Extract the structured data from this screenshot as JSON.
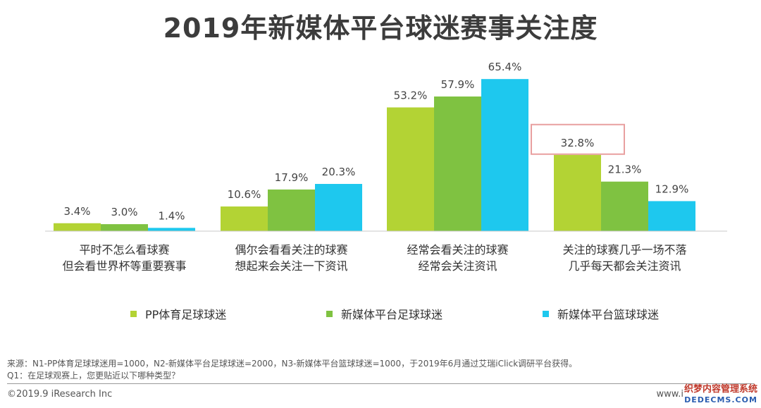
{
  "title": "2019年新媒体平台球迷赛事关注度",
  "chart_data": {
    "type": "bar",
    "title": "2019年新媒体平台球迷赛事关注度",
    "categories": [
      [
        "平时不怎么看球赛",
        "但会看世界杯等重要赛事"
      ],
      [
        "偶尔会看看关注的球赛",
        "想起来会关注一下资讯"
      ],
      [
        "经常会看关注的球赛",
        "经常会关注资讯"
      ],
      [
        "关注的球赛几乎一场不落",
        "几乎每天都会关注资讯"
      ]
    ],
    "series": [
      {
        "name": "PP体育足球球迷",
        "color": "#b3d334",
        "values": [
          3.4,
          10.6,
          53.2,
          32.8
        ]
      },
      {
        "name": "新媒体平台足球球迷",
        "color": "#7fc241",
        "values": [
          3.0,
          17.9,
          57.9,
          21.3
        ]
      },
      {
        "name": "新媒体平台篮球球迷",
        "color": "#1ec8ee",
        "values": [
          1.4,
          20.3,
          65.4,
          12.9
        ]
      }
    ],
    "value_labels": [
      [
        "3.4%",
        "10.6%",
        "53.2%",
        "32.8%"
      ],
      [
        "3.0%",
        "17.9%",
        "57.9%",
        "21.3%"
      ],
      [
        "1.4%",
        "20.3%",
        "65.4%",
        "12.9%"
      ]
    ],
    "highlight": {
      "series": 0,
      "category": 3,
      "color": "#e8a0a0"
    },
    "ylim": [
      0,
      70
    ],
    "grid": false,
    "legend": "bottom",
    "xlabel": "",
    "ylabel": ""
  },
  "notes": {
    "source": "来源：N1-PP体育足球球迷用=1000，N2-新媒体平台足球球迷=2000，N3-新媒体平台篮球球迷=1000，于2019年6月通过艾瑞iClick调研平台获得。",
    "question": "Q1：在足球观赛上，您更贴近以下哪种类型？"
  },
  "footer": {
    "copyright": "©2019.9 iResearch Inc",
    "site": "www.i",
    "watermark_cn": "织梦内容管理系统",
    "watermark_en": "DEDECMS.COM"
  }
}
